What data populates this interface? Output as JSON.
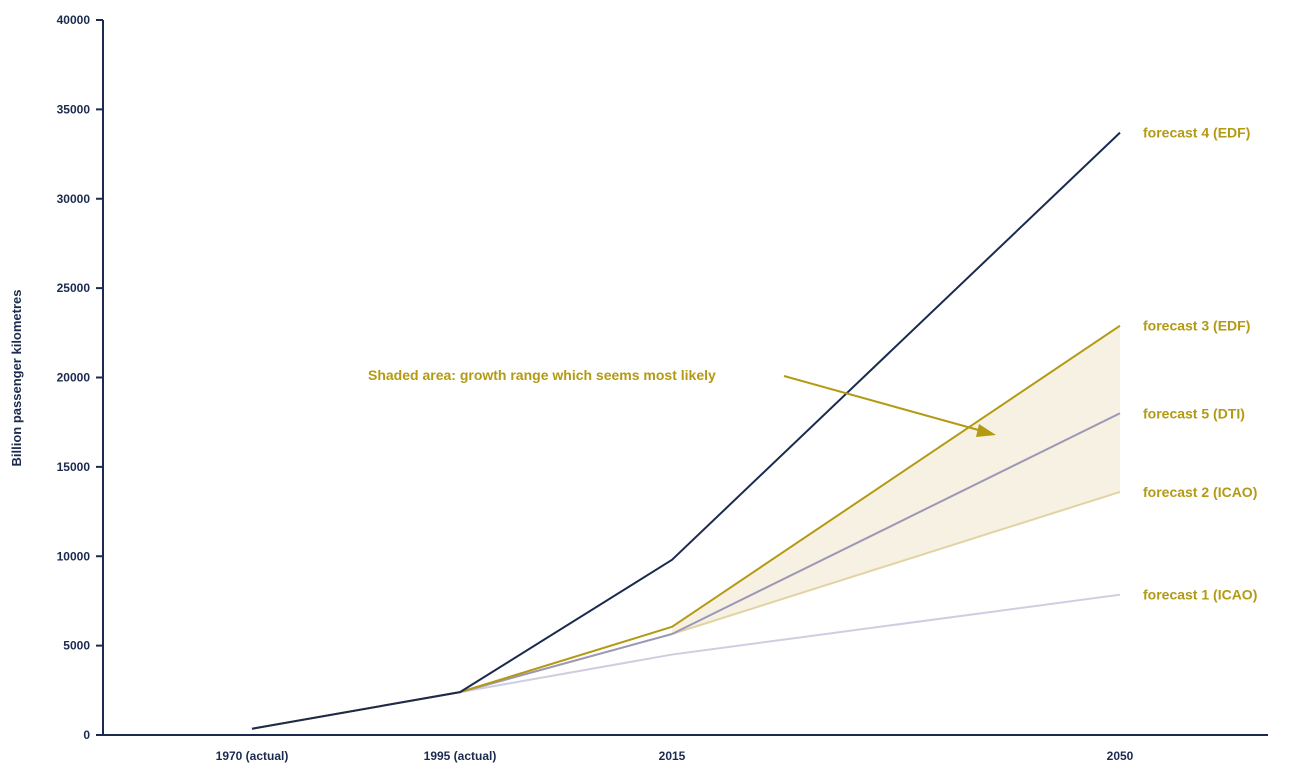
{
  "chart_data": {
    "type": "line",
    "ylabel": "Billion passenger kilometres",
    "xlabel": "",
    "categories": [
      "1970 (actual)",
      "1995 (actual)",
      "2015",
      "2050"
    ],
    "ylim": [
      0,
      40000
    ],
    "yticks": [
      0,
      5000,
      10000,
      15000,
      20000,
      25000,
      30000,
      35000,
      40000
    ],
    "series": [
      {
        "name": "forecast 4 (EDF)",
        "color": "#1b2a4e",
        "values": [
          350,
          2400,
          9800,
          33700
        ]
      },
      {
        "name": "forecast 3 (EDF)",
        "color": "#b39a12",
        "values": [
          350,
          2400,
          6050,
          22900
        ]
      },
      {
        "name": "forecast 5 (DTI)",
        "color": "#9a98b6",
        "values": [
          350,
          2400,
          5650,
          18000
        ]
      },
      {
        "name": "forecast 2 (ICAO)",
        "color": "#e3d3a4",
        "values": [
          350,
          2400,
          5650,
          13600
        ]
      },
      {
        "name": "forecast 1 (ICAO)",
        "color": "#cfcde0",
        "values": [
          350,
          2400,
          4500,
          7850
        ]
      }
    ],
    "shaded_area": {
      "upper": "forecast 3 (EDF)",
      "lower": "forecast 2 (ICAO)",
      "color": "#f6f1e2"
    },
    "annotation": "Shaded area: growth range which seems most likely",
    "grid": false,
    "legend": "labels at line ends, right"
  }
}
